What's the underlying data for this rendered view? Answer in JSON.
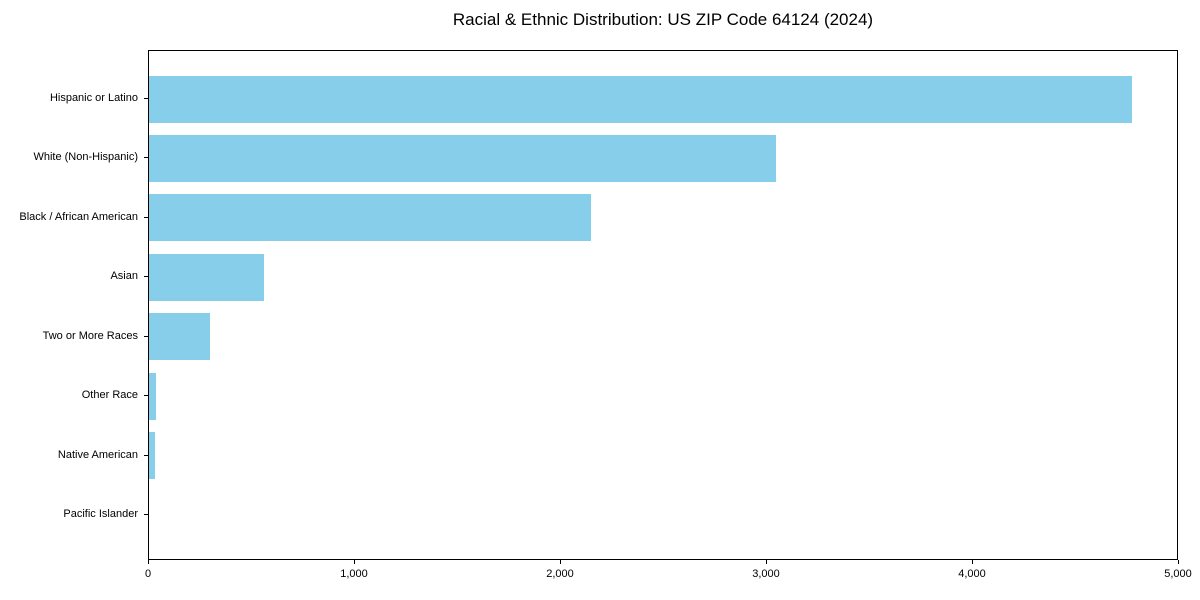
{
  "chart_data": {
    "type": "bar",
    "orientation": "horizontal",
    "title": "Racial & Ethnic Distribution: US ZIP Code 64124 (2024)",
    "categories": [
      "Hispanic or Latino",
      "White (Non-Hispanic)",
      "Black / African American",
      "Asian",
      "Two or More Races",
      "Other Race",
      "Native American",
      "Pacific Islander"
    ],
    "values": [
      4780,
      3050,
      2150,
      560,
      295,
      35,
      30,
      0
    ],
    "xlabel": "",
    "ylabel": "",
    "xlim": [
      0,
      5000
    ],
    "x_ticks": [
      0,
      1000,
      2000,
      3000,
      4000,
      5000
    ],
    "x_tick_labels": [
      "0",
      "1,000",
      "2,000",
      "3,000",
      "4,000",
      "5,000"
    ],
    "bar_color": "#87CEEB",
    "text_color": "#000000",
    "grid": false,
    "legend": false
  }
}
